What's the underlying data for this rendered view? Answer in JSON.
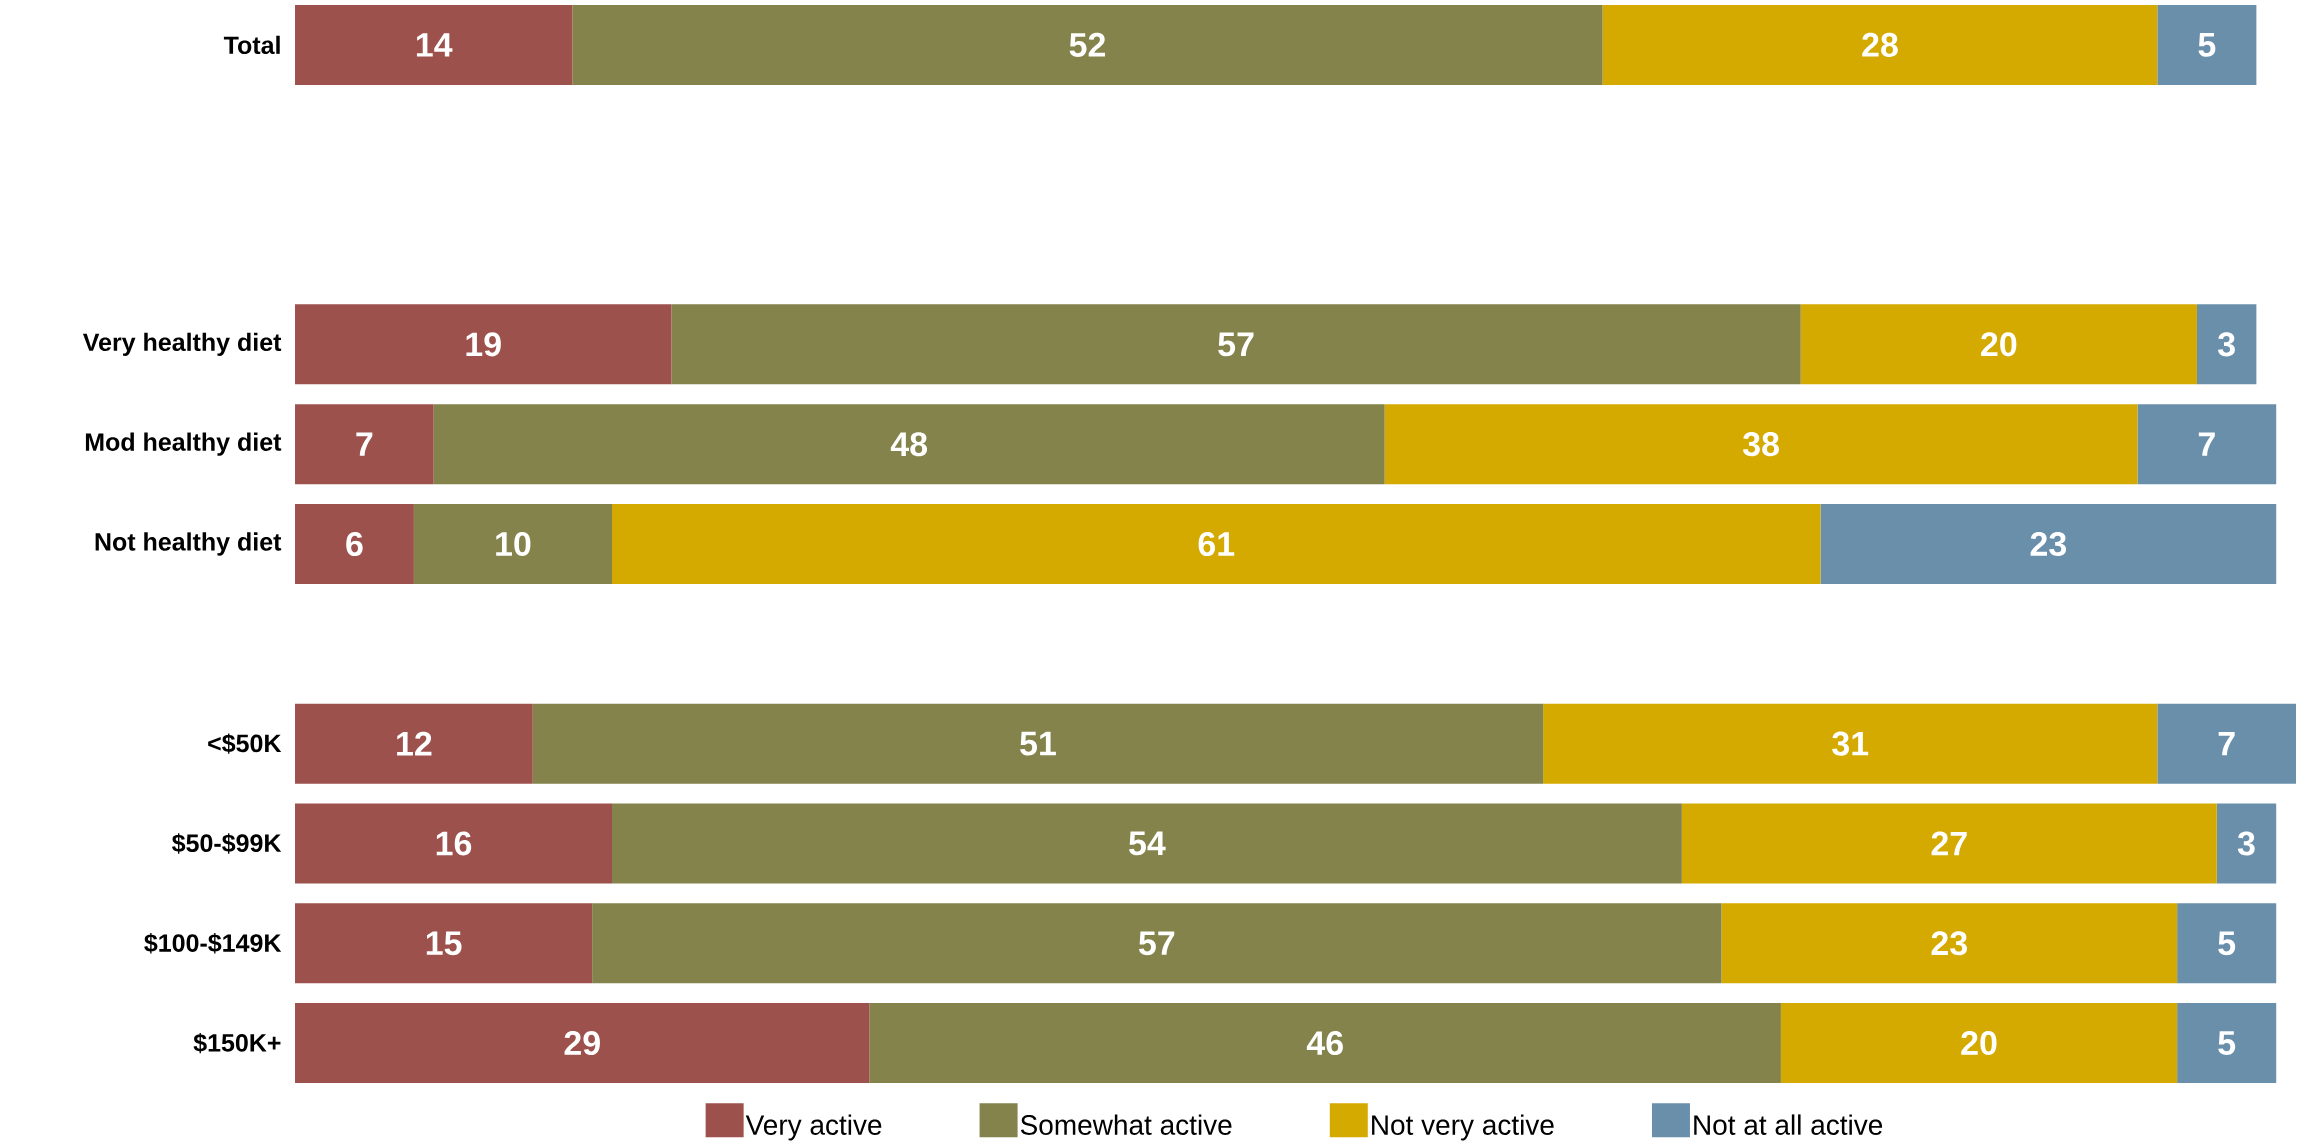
{
  "chart_data": {
    "type": "bar",
    "orientation": "horizontal",
    "stacked": true,
    "legend": "bottom",
    "data_labels": true,
    "categories": [
      "Total",
      null,
      null,
      "Very healthy diet",
      "Mod healthy diet",
      "Not healthy diet",
      null,
      "<$50K",
      "$50-$99K",
      "$100-$149K",
      "$150K+"
    ],
    "series": [
      {
        "name": "Very active",
        "color": "#9c514c",
        "values": [
          14,
          null,
          null,
          19,
          7,
          6,
          null,
          12,
          16,
          15,
          29
        ]
      },
      {
        "name": "Somewhat active",
        "color": "#83834b",
        "values": [
          52,
          null,
          null,
          57,
          48,
          10,
          null,
          51,
          54,
          57,
          46
        ]
      },
      {
        "name": "Not very active",
        "color": "#d4a900",
        "values": [
          28,
          null,
          null,
          20,
          38,
          61,
          null,
          31,
          27,
          23,
          20
        ]
      },
      {
        "name": "Not at all active",
        "color": "#6a8fab",
        "values": [
          5,
          null,
          null,
          3,
          7,
          23,
          null,
          7,
          3,
          5,
          5
        ]
      }
    ]
  }
}
